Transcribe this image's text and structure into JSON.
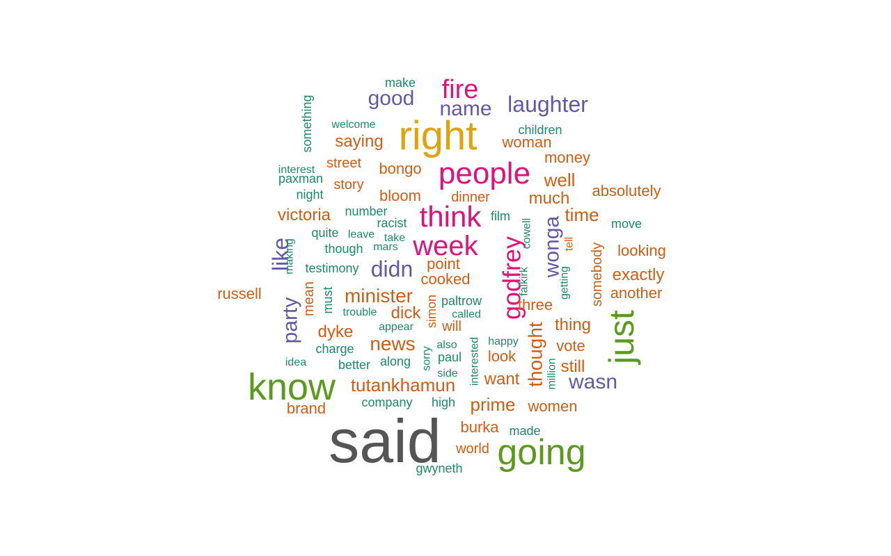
{
  "chart_data": {
    "type": "wordcloud",
    "palette": {
      "dark": "#555555",
      "green": "#5a9b1e",
      "gold": "#e0a30e",
      "magenta": "#e0117a",
      "purple": "#6458a6",
      "orange": "#d15c12",
      "teal": "#1b8a66"
    },
    "words": [
      {
        "text": "said",
        "color": "dark"
      },
      {
        "text": "know",
        "color": "green"
      },
      {
        "text": "going",
        "color": "green"
      },
      {
        "text": "just",
        "color": "green"
      },
      {
        "text": "right",
        "color": "gold"
      },
      {
        "text": "people",
        "color": "magenta"
      },
      {
        "text": "think",
        "color": "magenta"
      },
      {
        "text": "week",
        "color": "magenta"
      },
      {
        "text": "fire",
        "color": "magenta"
      },
      {
        "text": "godfrey",
        "color": "magenta"
      },
      {
        "text": "good",
        "color": "purple"
      },
      {
        "text": "name",
        "color": "purple"
      },
      {
        "text": "laughter",
        "color": "purple"
      },
      {
        "text": "wonga",
        "color": "purple"
      },
      {
        "text": "like",
        "color": "purple"
      },
      {
        "text": "party",
        "color": "purple"
      },
      {
        "text": "didn",
        "color": "purple"
      },
      {
        "text": "wasn",
        "color": "purple"
      },
      {
        "text": "saying",
        "color": "orange"
      },
      {
        "text": "woman",
        "color": "orange"
      },
      {
        "text": "money",
        "color": "orange"
      },
      {
        "text": "street",
        "color": "orange"
      },
      {
        "text": "bongo",
        "color": "orange"
      },
      {
        "text": "well",
        "color": "orange"
      },
      {
        "text": "story",
        "color": "orange"
      },
      {
        "text": "bloom",
        "color": "orange"
      },
      {
        "text": "dinner",
        "color": "orange"
      },
      {
        "text": "much",
        "color": "orange"
      },
      {
        "text": "absolutely",
        "color": "orange"
      },
      {
        "text": "victoria",
        "color": "orange"
      },
      {
        "text": "time",
        "color": "orange"
      },
      {
        "text": "point",
        "color": "orange"
      },
      {
        "text": "looking",
        "color": "orange"
      },
      {
        "text": "cooked",
        "color": "orange"
      },
      {
        "text": "exactly",
        "color": "orange"
      },
      {
        "text": "russell",
        "color": "orange"
      },
      {
        "text": "minister",
        "color": "orange"
      },
      {
        "text": "another",
        "color": "orange"
      },
      {
        "text": "mean",
        "color": "orange"
      },
      {
        "text": "dick",
        "color": "orange"
      },
      {
        "text": "three",
        "color": "orange"
      },
      {
        "text": "somebody",
        "color": "orange"
      },
      {
        "text": "simon",
        "color": "orange"
      },
      {
        "text": "dyke",
        "color": "orange"
      },
      {
        "text": "will",
        "color": "orange"
      },
      {
        "text": "thing",
        "color": "orange"
      },
      {
        "text": "news",
        "color": "orange"
      },
      {
        "text": "vote",
        "color": "orange"
      },
      {
        "text": "look",
        "color": "orange"
      },
      {
        "text": "thought",
        "color": "orange"
      },
      {
        "text": "still",
        "color": "orange"
      },
      {
        "text": "tutankhamun",
        "color": "orange"
      },
      {
        "text": "want",
        "color": "orange"
      },
      {
        "text": "brand",
        "color": "orange"
      },
      {
        "text": "prime",
        "color": "orange"
      },
      {
        "text": "women",
        "color": "orange"
      },
      {
        "text": "burka",
        "color": "orange"
      },
      {
        "text": "world",
        "color": "orange"
      },
      {
        "text": "make",
        "color": "teal"
      },
      {
        "text": "something",
        "color": "teal"
      },
      {
        "text": "welcome",
        "color": "teal"
      },
      {
        "text": "children",
        "color": "teal"
      },
      {
        "text": "interest",
        "color": "teal"
      },
      {
        "text": "paxman",
        "color": "teal"
      },
      {
        "text": "night",
        "color": "teal"
      },
      {
        "text": "number",
        "color": "teal"
      },
      {
        "text": "film",
        "color": "teal"
      },
      {
        "text": "racist",
        "color": "teal"
      },
      {
        "text": "move",
        "color": "teal"
      },
      {
        "text": "quite",
        "color": "teal"
      },
      {
        "text": "leave",
        "color": "teal"
      },
      {
        "text": "take",
        "color": "teal"
      },
      {
        "text": "cowell",
        "color": "teal"
      },
      {
        "text": "making",
        "color": "teal"
      },
      {
        "text": "though",
        "color": "teal"
      },
      {
        "text": "mars",
        "color": "teal"
      },
      {
        "text": "tell",
        "color": "orange"
      },
      {
        "text": "testimony",
        "color": "teal"
      },
      {
        "text": "falkirk",
        "color": "teal"
      },
      {
        "text": "getting",
        "color": "teal"
      },
      {
        "text": "must",
        "color": "teal"
      },
      {
        "text": "paltrow",
        "color": "teal"
      },
      {
        "text": "trouble",
        "color": "teal"
      },
      {
        "text": "called",
        "color": "teal"
      },
      {
        "text": "appear",
        "color": "teal"
      },
      {
        "text": "charge",
        "color": "teal"
      },
      {
        "text": "also",
        "color": "teal"
      },
      {
        "text": "happy",
        "color": "teal"
      },
      {
        "text": "idea",
        "color": "teal"
      },
      {
        "text": "better",
        "color": "teal"
      },
      {
        "text": "along",
        "color": "teal"
      },
      {
        "text": "sorry",
        "color": "teal"
      },
      {
        "text": "paul",
        "color": "teal"
      },
      {
        "text": "interested",
        "color": "teal"
      },
      {
        "text": "million",
        "color": "teal"
      },
      {
        "text": "side",
        "color": "teal"
      },
      {
        "text": "company",
        "color": "teal"
      },
      {
        "text": "high",
        "color": "teal"
      },
      {
        "text": "made",
        "color": "teal"
      },
      {
        "text": "gwyneth",
        "color": "teal"
      }
    ]
  }
}
